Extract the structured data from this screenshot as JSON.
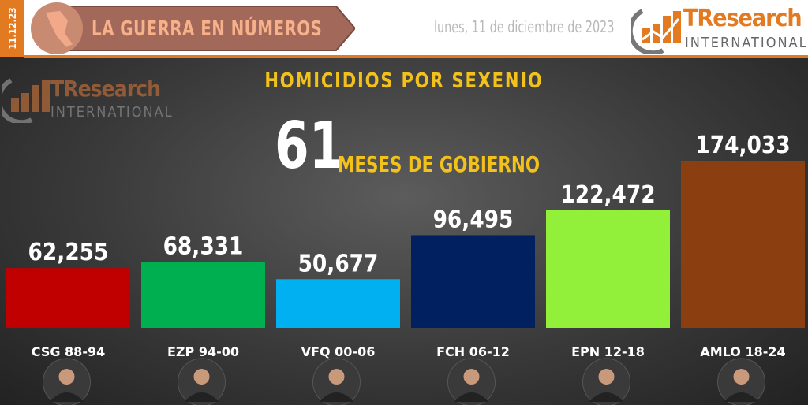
{
  "header": {
    "date_strip": "11.12.23",
    "banner_title": "LA GUERRA EN NÚMEROS",
    "date": "lunes, 11 de diciembre de 2023",
    "logo": {
      "name": "TResearch",
      "sub": "INTERNATIONAL"
    }
  },
  "watermark_logo": {
    "name": "TResearch",
    "sub": "INTERNATIONAL"
  },
  "subtitle": {
    "number": "61",
    "text": "MESES DE GOBIERNO"
  },
  "colors": {
    "accent": "#e27a22",
    "title": "#f2c21a"
  },
  "chart_data": {
    "type": "bar",
    "title": "HOMICIDIOS POR SEXENIO",
    "categories": [
      "CSG 88-94",
      "EZP 94-00",
      "VFQ 00-06",
      "FCH 06-12",
      "EPN 12-18",
      "AMLO 18-24"
    ],
    "values": [
      62255,
      68331,
      50677,
      96495,
      122472,
      174033
    ],
    "value_labels": [
      "62,255",
      "68,331",
      "50,677",
      "96,495",
      "122,472",
      "174,033"
    ],
    "bar_colors": [
      "#c00000",
      "#00b050",
      "#00b0f0",
      "#002060",
      "#92f03a",
      "#8b3f10"
    ],
    "grid": false,
    "legend": "none"
  }
}
